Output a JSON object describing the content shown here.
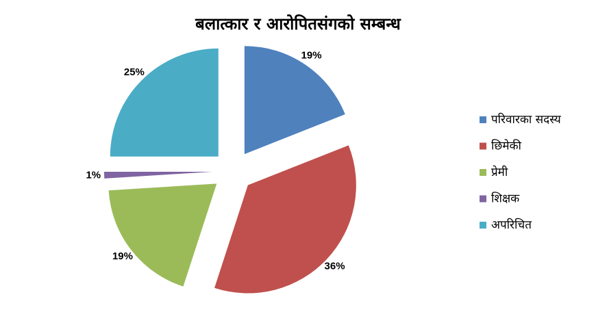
{
  "chart_data": {
    "type": "pie",
    "title": "बलात्कार र आरोपितसंगको सम्बन्ध",
    "categories": [
      "परिवारका सदस्य",
      "छिमेकी",
      "प्रेमी",
      "शिक्षक",
      "अपरिचित"
    ],
    "values": [
      19,
      36,
      19,
      1,
      25
    ],
    "value_labels": [
      "19%",
      "36%",
      "19%",
      "1%",
      "25%"
    ],
    "colors": [
      "#4f81bd",
      "#c0504d",
      "#9bbb59",
      "#8064a2",
      "#4bacc6"
    ],
    "legend": "right"
  }
}
